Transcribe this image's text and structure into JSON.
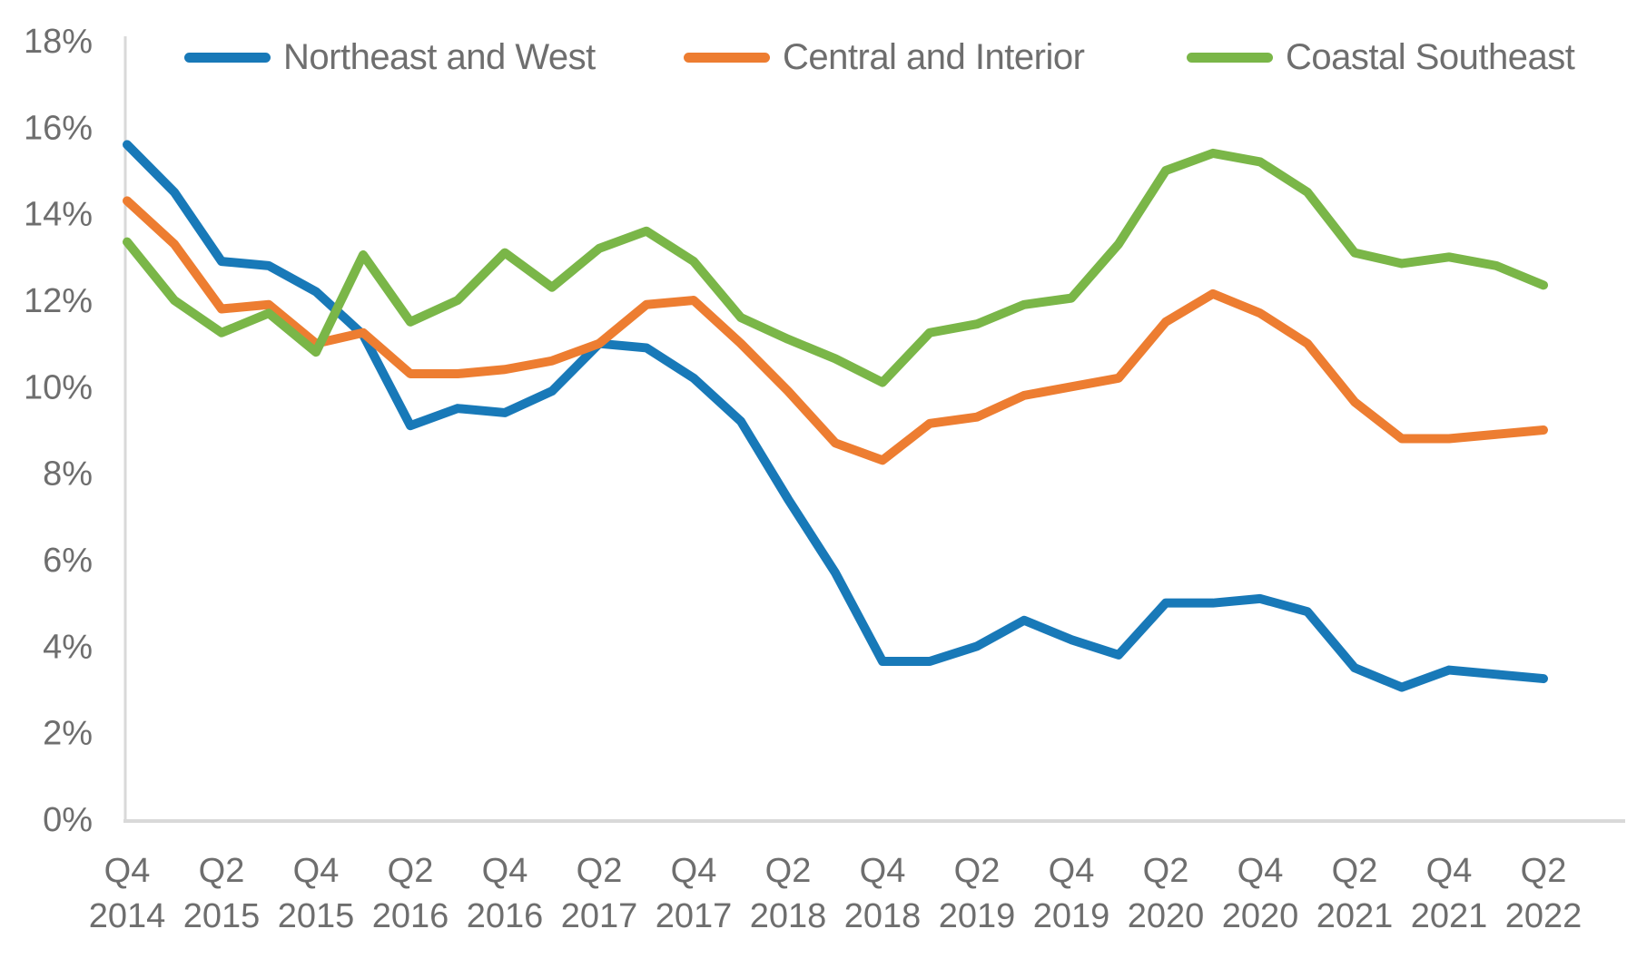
{
  "page": {
    "background": "#ffffff"
  },
  "chart_data": {
    "type": "line",
    "title": "",
    "xlabel": "",
    "ylabel": "",
    "ylim": [
      0,
      18
    ],
    "y_tick_step": 2,
    "y_tick_labels": [
      "0%",
      "2%",
      "4%",
      "6%",
      "8%",
      "10%",
      "12%",
      "14%",
      "16%",
      "18%"
    ],
    "x_tick_labels": [
      [
        "Q4",
        "2014"
      ],
      [
        "Q2",
        "2015"
      ],
      [
        "Q4",
        "2015"
      ],
      [
        "Q2",
        "2016"
      ],
      [
        "Q4",
        "2016"
      ],
      [
        "Q2",
        "2017"
      ],
      [
        "Q4",
        "2017"
      ],
      [
        "Q2",
        "2018"
      ],
      [
        "Q4",
        "2018"
      ],
      [
        "Q2",
        "2019"
      ],
      [
        "Q4",
        "2019"
      ],
      [
        "Q2",
        "2020"
      ],
      [
        "Q4",
        "2020"
      ],
      [
        "Q2",
        "2021"
      ],
      [
        "Q4",
        "2021"
      ],
      [
        "Q2",
        "2022"
      ]
    ],
    "x_quarters": [
      "Q4 2014",
      "Q1 2015",
      "Q2 2015",
      "Q3 2015",
      "Q4 2015",
      "Q1 2016",
      "Q2 2016",
      "Q3 2016",
      "Q4 2016",
      "Q1 2017",
      "Q2 2017",
      "Q3 2017",
      "Q4 2017",
      "Q1 2018",
      "Q2 2018",
      "Q3 2018",
      "Q4 2018",
      "Q1 2019",
      "Q2 2019",
      "Q3 2019",
      "Q4 2019",
      "Q1 2020",
      "Q2 2020",
      "Q3 2020",
      "Q4 2020",
      "Q1 2021",
      "Q2 2021",
      "Q3 2021",
      "Q4 2021",
      "Q1 2022",
      "Q2 2022"
    ],
    "series": [
      {
        "name": "Northeast and West",
        "color": "#1879b8",
        "values": [
          15.6,
          14.5,
          12.9,
          12.8,
          12.2,
          11.2,
          9.1,
          9.5,
          9.4,
          9.9,
          11.0,
          10.9,
          10.2,
          9.2,
          7.4,
          5.7,
          3.65,
          3.65,
          4.0,
          4.6,
          4.15,
          3.8,
          5.0,
          5.0,
          5.1,
          4.8,
          3.5,
          3.05,
          3.45,
          3.35,
          3.25
        ]
      },
      {
        "name": "Central and Interior",
        "color": "#ed7d31",
        "values": [
          14.3,
          13.3,
          11.8,
          11.9,
          11.0,
          11.25,
          10.3,
          10.3,
          10.4,
          10.6,
          11.0,
          11.9,
          12.0,
          11.0,
          9.9,
          8.7,
          8.3,
          9.15,
          9.3,
          9.8,
          10.0,
          10.2,
          11.5,
          12.15,
          11.7,
          11.0,
          9.65,
          8.8,
          8.8,
          8.9,
          9.0
        ]
      },
      {
        "name": "Coastal Southeast",
        "color": "#7ab648",
        "values": [
          13.35,
          12.0,
          11.25,
          11.7,
          10.8,
          13.05,
          11.5,
          12.0,
          13.1,
          12.3,
          13.2,
          13.6,
          12.9,
          11.6,
          11.1,
          10.65,
          10.1,
          11.25,
          11.45,
          11.9,
          12.05,
          13.3,
          15.0,
          15.4,
          15.2,
          14.5,
          13.1,
          12.85,
          13.0,
          12.8,
          12.35
        ]
      }
    ],
    "grid": false,
    "legend_position": "top",
    "axis_color": "#d9d9d9",
    "label_color": "#6e6e6e"
  }
}
